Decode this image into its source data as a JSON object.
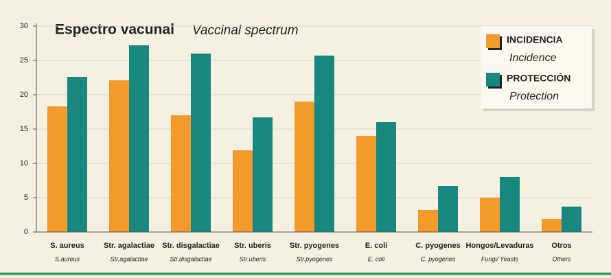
{
  "chart_data": {
    "type": "bar",
    "title": "Espectro vacunal",
    "subtitle": "Vaccinal spectrum",
    "categories": [
      "S. aureus",
      "Str. agalactiae",
      "Str. disgalactiae",
      "Str. uberis",
      "Str. pyogenes",
      "E. coli",
      "C. pyogenes",
      "Hongos/Levaduras",
      "Otros"
    ],
    "subcategories": [
      "S.aureus",
      "Str.agalactiae",
      "Str.disgalactiae",
      "Str.uberis",
      "Str.pyogenes",
      "E. coli",
      "C. pyogenes",
      "Fungi/ Yeasts",
      "Others"
    ],
    "series": [
      {
        "name": "INCIDENCIA",
        "name_en": "Incidence",
        "color": "#f39a2c",
        "values": [
          18.3,
          22.1,
          17.0,
          11.9,
          19.0,
          14.0,
          3.2,
          5.0,
          1.9
        ]
      },
      {
        "name": "PROTECCIÓN",
        "name_en": "Protection",
        "color": "#17877f",
        "values": [
          22.6,
          27.2,
          26.0,
          16.7,
          25.7,
          16.0,
          6.7,
          8.0,
          3.7
        ]
      }
    ],
    "ylim": [
      0,
      30
    ],
    "yticks": [
      0,
      5,
      10,
      15,
      20,
      25,
      30
    ],
    "grid": true,
    "legend": "top-right"
  }
}
